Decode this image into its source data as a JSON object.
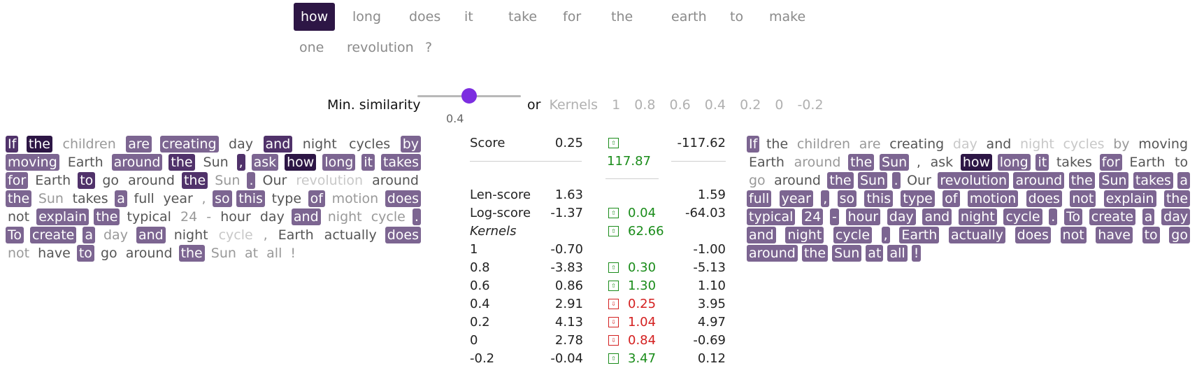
{
  "query": {
    "tokens": [
      {
        "text": "how",
        "active": true
      },
      {
        "text": "long",
        "active": false
      },
      {
        "text": "does",
        "active": false
      },
      {
        "text": "it",
        "active": false
      },
      {
        "text": "take",
        "active": false
      },
      {
        "text": "for",
        "active": false
      },
      {
        "text": "the",
        "active": false
      },
      {
        "text": "earth",
        "active": false
      },
      {
        "text": "to",
        "active": false
      },
      {
        "text": "make",
        "active": false
      },
      {
        "text": "one",
        "active": false
      },
      {
        "text": "revolution",
        "active": false
      },
      {
        "text": "?",
        "active": false
      }
    ]
  },
  "slider": {
    "label": "Min. similarity",
    "value": "0.4",
    "fraction": 0.5
  },
  "kernels": {
    "or_label": "or",
    "label": "Kernels",
    "values": [
      "1",
      "0.8",
      "0.6",
      "0.4",
      "0.2",
      "0",
      "-0.2"
    ]
  },
  "doc_left": [
    [
      "If",
      "h2"
    ],
    [
      "the",
      "h3"
    ],
    [
      "children",
      "g1"
    ],
    [
      "are",
      "h1"
    ],
    [
      "creating",
      "h1"
    ],
    [
      "day",
      "g0"
    ],
    [
      "and",
      "h2"
    ],
    [
      "night",
      "g0"
    ],
    [
      "cycles",
      "g0"
    ],
    [
      "by",
      "h1"
    ],
    [
      "moving",
      "h1"
    ],
    [
      "Earth",
      "g0"
    ],
    [
      "around",
      "h1"
    ],
    [
      "the",
      "h2"
    ],
    [
      "Sun",
      "g0"
    ],
    [
      ",",
      "h2"
    ],
    [
      "ask",
      "h1"
    ],
    [
      "how",
      "h3"
    ],
    [
      "long",
      "h1"
    ],
    [
      "it",
      "h1"
    ],
    [
      "takes",
      "h1"
    ],
    [
      "for",
      "h1"
    ],
    [
      "Earth",
      "g0"
    ],
    [
      "to",
      "h2"
    ],
    [
      "go",
      "g0"
    ],
    [
      "around",
      "g0"
    ],
    [
      "the",
      "h2"
    ],
    [
      "Sun",
      "g1"
    ],
    [
      ".",
      "h1"
    ],
    [
      "Our",
      "g0"
    ],
    [
      "revolution",
      "g2"
    ],
    [
      "around",
      "g0"
    ],
    [
      "the",
      "h1"
    ],
    [
      "Sun",
      "g1"
    ],
    [
      "takes",
      "g0"
    ],
    [
      "a",
      "h1"
    ],
    [
      "full",
      "g0"
    ],
    [
      "year",
      "g0"
    ],
    [
      ",",
      "g1"
    ],
    [
      "so",
      "h1"
    ],
    [
      "this",
      "h1"
    ],
    [
      "type",
      "g0"
    ],
    [
      "of",
      "h1"
    ],
    [
      "motion",
      "g1"
    ],
    [
      "does",
      "h1"
    ],
    [
      "not",
      "g0"
    ],
    [
      "explain",
      "h1"
    ],
    [
      "the",
      "h1"
    ],
    [
      "typical",
      "g0"
    ],
    [
      "24",
      "g1"
    ],
    [
      "-",
      "g1"
    ],
    [
      "hour",
      "g0"
    ],
    [
      "day",
      "g0"
    ],
    [
      "and",
      "h1"
    ],
    [
      "night",
      "g1"
    ],
    [
      "cycle",
      "g1"
    ],
    [
      ".",
      "h1"
    ],
    [
      "To",
      "h1"
    ],
    [
      "create",
      "h1"
    ],
    [
      "a",
      "h1"
    ],
    [
      "day",
      "g1"
    ],
    [
      "and",
      "h1"
    ],
    [
      "night",
      "g0"
    ],
    [
      "cycle",
      "g2"
    ],
    [
      ",",
      "g1"
    ],
    [
      "Earth",
      "g0"
    ],
    [
      "actually",
      "g0"
    ],
    [
      "does",
      "h1"
    ],
    [
      "not",
      "g1"
    ],
    [
      "have",
      "g0"
    ],
    [
      "to",
      "h1"
    ],
    [
      "go",
      "g0"
    ],
    [
      "around",
      "g0"
    ],
    [
      "the",
      "h1"
    ],
    [
      "Sun",
      "g1"
    ],
    [
      "at",
      "g1"
    ],
    [
      "all",
      "g1"
    ],
    [
      "!",
      "g1"
    ]
  ],
  "doc_right": [
    [
      "If",
      "h1"
    ],
    [
      "the",
      "g0"
    ],
    [
      "children",
      "g1"
    ],
    [
      "are",
      "g1"
    ],
    [
      "creating",
      "g0"
    ],
    [
      "day",
      "g2"
    ],
    [
      "and",
      "g0"
    ],
    [
      "night",
      "g2"
    ],
    [
      "cycles",
      "g2"
    ],
    [
      "by",
      "g1"
    ],
    [
      "moving",
      "g0"
    ],
    [
      "Earth",
      "g0"
    ],
    [
      "around",
      "g1"
    ],
    [
      "the",
      "h1"
    ],
    [
      "Sun",
      "h1"
    ],
    [
      ",",
      "g0"
    ],
    [
      "ask",
      "g0"
    ],
    [
      "how",
      "h3"
    ],
    [
      "long",
      "h1"
    ],
    [
      "it",
      "h1"
    ],
    [
      "takes",
      "g0"
    ],
    [
      "for",
      "h1"
    ],
    [
      "Earth",
      "g0"
    ],
    [
      "to",
      "g0"
    ],
    [
      "go",
      "g1"
    ],
    [
      "around",
      "g0"
    ],
    [
      "the",
      "h1"
    ],
    [
      "Sun",
      "h1"
    ],
    [
      ".",
      "h1"
    ],
    [
      "Our",
      "g0"
    ],
    [
      "revolution",
      "h1"
    ],
    [
      "around",
      "h1"
    ],
    [
      "the",
      "h1"
    ],
    [
      "Sun",
      "h1"
    ],
    [
      "takes",
      "h1"
    ],
    [
      "a",
      "h1"
    ],
    [
      "full",
      "h1"
    ],
    [
      "year",
      "h1"
    ],
    [
      ",",
      "h1"
    ],
    [
      "so",
      "h1"
    ],
    [
      "this",
      "h1"
    ],
    [
      "type",
      "h1"
    ],
    [
      "of",
      "h1"
    ],
    [
      "motion",
      "h1"
    ],
    [
      "does",
      "h1"
    ],
    [
      "not",
      "h1"
    ],
    [
      "explain",
      "h1"
    ],
    [
      "the",
      "h1"
    ],
    [
      "typical",
      "h1"
    ],
    [
      "24",
      "h1"
    ],
    [
      "-",
      "h1"
    ],
    [
      "hour",
      "h1"
    ],
    [
      "day",
      "h1"
    ],
    [
      "and",
      "h1"
    ],
    [
      "night",
      "h1"
    ],
    [
      "cycle",
      "h1"
    ],
    [
      ".",
      "h1"
    ],
    [
      "To",
      "h1"
    ],
    [
      "create",
      "h1"
    ],
    [
      "a",
      "h1"
    ],
    [
      "day",
      "h1"
    ],
    [
      "and",
      "h1"
    ],
    [
      "night",
      "h1"
    ],
    [
      "cycle",
      "h1"
    ],
    [
      ",",
      "h1"
    ],
    [
      "Earth",
      "h1"
    ],
    [
      "actually",
      "h1"
    ],
    [
      "does",
      "h1"
    ],
    [
      "not",
      "h1"
    ],
    [
      "have",
      "h1"
    ],
    [
      "to",
      "h1"
    ],
    [
      "go",
      "h1"
    ],
    [
      "around",
      "h1"
    ],
    [
      "the",
      "h1"
    ],
    [
      "Sun",
      "h1"
    ],
    [
      "at",
      "h1"
    ],
    [
      "all",
      "h1"
    ],
    [
      "!",
      "h1"
    ]
  ],
  "table": {
    "score": {
      "label": "Score",
      "left": "0.25",
      "delta": "117.87",
      "right": "-117.62"
    },
    "len_score": {
      "label": "Len-score",
      "left": "1.63",
      "right": "1.59"
    },
    "log_score": {
      "label": "Log-score",
      "left": "-1.37",
      "delta": "0.04",
      "right": "-64.03"
    },
    "kernels_label": "Kernels",
    "kernels_delta": "62.66",
    "kernel_rows": [
      {
        "label": "1",
        "left": "-0.70",
        "delta": "",
        "right": "-1.00",
        "dir": ""
      },
      {
        "label": "0.8",
        "left": "-3.83",
        "delta": "0.30",
        "right": "-5.13",
        "dir": "up"
      },
      {
        "label": "0.6",
        "left": "0.86",
        "delta": "1.30",
        "right": "1.10",
        "dir": "up"
      },
      {
        "label": "0.4",
        "left": "2.91",
        "delta": "0.25",
        "right": "3.95",
        "dir": "down"
      },
      {
        "label": "0.2",
        "left": "4.13",
        "delta": "1.04",
        "right": "4.97",
        "dir": "down"
      },
      {
        "label": "0",
        "left": "2.78",
        "delta": "0.84",
        "right": "-0.69",
        "dir": "down"
      },
      {
        "label": "-0.2",
        "left": "-0.04",
        "delta": "3.47",
        "right": "0.12",
        "dir": "up"
      }
    ],
    "colors": {
      "up": "#1a8c1a",
      "down": "#d42020"
    }
  }
}
